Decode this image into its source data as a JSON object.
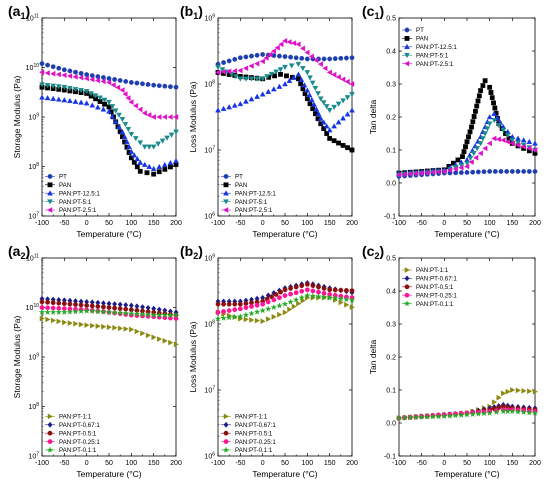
{
  "chart_data": [
    {
      "panel": "a1",
      "type": "scatter",
      "ylog": true,
      "xlim": [
        -100,
        200
      ],
      "ylim": [
        10000000,
        100000000000
      ],
      "xlabel": "Temperature (°C)",
      "ylabel": "Storage Modulus (Pa)",
      "legend_position": "bottom-left",
      "series": [
        {
          "name": "PT",
          "color": "#1f3fb0",
          "marker": "circle",
          "x": [
            -100,
            -50,
            0,
            50,
            100,
            150,
            200
          ],
          "y": [
            12000000000,
            9000000000,
            7200000000,
            6000000000,
            5000000000,
            4400000000,
            4000000000
          ]
        },
        {
          "name": "PAN",
          "color": "#000000",
          "marker": "square",
          "x": [
            -100,
            -50,
            0,
            50,
            80,
            100,
            120,
            150,
            200
          ],
          "y": [
            4000000000,
            3500000000,
            3000000000,
            1600000000,
            400000000,
            150000000,
            80000000,
            70000000,
            110000000
          ]
        },
        {
          "name": "PAN:PT-12.5:1",
          "color": "#1535e6",
          "marker": "triangle-up",
          "x": [
            -100,
            -50,
            0,
            50,
            80,
            100,
            120,
            150,
            200
          ],
          "y": [
            2500000000,
            2200000000,
            1900000000,
            1300000000,
            500000000,
            200000000,
            120000000,
            90000000,
            130000000
          ]
        },
        {
          "name": "PAN:PT-5:1",
          "color": "#1a8a8a",
          "marker": "triangle-down",
          "x": [
            -100,
            -50,
            0,
            50,
            80,
            100,
            130,
            150,
            200
          ],
          "y": [
            4500000000,
            4000000000,
            3300000000,
            2000000000,
            900000000,
            450000000,
            250000000,
            250000000,
            500000000
          ]
        },
        {
          "name": "PAN:PT-2.5:1",
          "color": "#e010c8",
          "marker": "triangle-left",
          "x": [
            -100,
            -50,
            0,
            50,
            80,
            100,
            130,
            150,
            200
          ],
          "y": [
            8000000000,
            7000000000,
            6000000000,
            5000000000,
            3500000000,
            2000000000,
            1200000000,
            1000000000,
            1000000000
          ]
        }
      ]
    },
    {
      "panel": "b1",
      "type": "scatter",
      "ylog": true,
      "xlim": [
        -100,
        200
      ],
      "ylim": [
        1000000,
        1000000000
      ],
      "xlabel": "Temperature (°C)",
      "ylabel": "Loss Modulus (Pa)",
      "legend_position": "bottom-left",
      "series": [
        {
          "name": "PT",
          "color": "#1f3fb0",
          "marker": "circle",
          "x": [
            -100,
            -50,
            0,
            50,
            100,
            150,
            200
          ],
          "y": [
            200000000,
            250000000,
            280000000,
            260000000,
            240000000,
            240000000,
            250000000
          ]
        },
        {
          "name": "PAN",
          "color": "#000000",
          "marker": "square",
          "x": [
            -100,
            -50,
            0,
            40,
            80,
            100,
            130,
            150,
            200
          ],
          "y": [
            150000000,
            130000000,
            120000000,
            140000000,
            120000000,
            60000000,
            25000000,
            15000000,
            10000000
          ]
        },
        {
          "name": "PAN:PT-12.5:1",
          "color": "#1535e6",
          "marker": "triangle-up",
          "x": [
            -100,
            -50,
            0,
            50,
            80,
            100,
            130,
            150,
            200
          ],
          "y": [
            40000000,
            50000000,
            70000000,
            100000000,
            140000000,
            80000000,
            30000000,
            20000000,
            40000000
          ]
        },
        {
          "name": "PAN:PT-5:1",
          "color": "#1a8a8a",
          "marker": "triangle-down",
          "x": [
            -100,
            -50,
            0,
            50,
            80,
            100,
            130,
            150,
            200
          ],
          "y": [
            180000000,
            120000000,
            120000000,
            180000000,
            200000000,
            150000000,
            60000000,
            40000000,
            70000000
          ]
        },
        {
          "name": "PAN:PT-2.5:1",
          "color": "#e010c8",
          "marker": "triangle-left",
          "x": [
            -100,
            -50,
            0,
            50,
            80,
            100,
            130,
            150,
            200
          ],
          "y": [
            150000000,
            160000000,
            220000000,
            450000000,
            400000000,
            300000000,
            200000000,
            150000000,
            100000000
          ]
        }
      ]
    },
    {
      "panel": "c1",
      "type": "scatter",
      "ylog": false,
      "xlim": [
        -100,
        200
      ],
      "ylim": [
        -0.1,
        0.5
      ],
      "xlabel": "Temperature (°C)",
      "ylabel": "Tan delta",
      "legend_position": "top-left",
      "series": [
        {
          "name": "PT",
          "color": "#1f3fb0",
          "marker": "circle",
          "x": [
            -100,
            -50,
            0,
            50,
            100,
            150,
            200
          ],
          "y": [
            0.02,
            0.025,
            0.03,
            0.032,
            0.035,
            0.035,
            0.035
          ]
        },
        {
          "name": "PAN",
          "color": "#000000",
          "marker": "square",
          "x": [
            -100,
            -50,
            0,
            40,
            60,
            80,
            90,
            100,
            120,
            150,
            200
          ],
          "y": [
            0.03,
            0.035,
            0.04,
            0.08,
            0.17,
            0.28,
            0.31,
            0.29,
            0.18,
            0.12,
            0.09
          ]
        },
        {
          "name": "PAN:PT-12.5:1",
          "color": "#1535e6",
          "marker": "triangle-up",
          "x": [
            -100,
            -50,
            0,
            50,
            80,
            100,
            110,
            130,
            150,
            200
          ],
          "y": [
            0.03,
            0.035,
            0.04,
            0.07,
            0.14,
            0.2,
            0.21,
            0.17,
            0.14,
            0.12
          ]
        },
        {
          "name": "PAN:PT-5:1",
          "color": "#1a8a8a",
          "marker": "triangle-down",
          "x": [
            -100,
            -50,
            0,
            50,
            80,
            100,
            110,
            130,
            150,
            200
          ],
          "y": [
            0.025,
            0.03,
            0.035,
            0.06,
            0.12,
            0.18,
            0.19,
            0.16,
            0.13,
            0.1
          ]
        },
        {
          "name": "PAN:PT-2.5:1",
          "color": "#e010c8",
          "marker": "triangle-left",
          "x": [
            -100,
            -50,
            0,
            50,
            80,
            100,
            110,
            130,
            150,
            200
          ],
          "y": [
            0.025,
            0.03,
            0.035,
            0.05,
            0.09,
            0.12,
            0.135,
            0.13,
            0.12,
            0.1
          ]
        }
      ]
    },
    {
      "panel": "a2",
      "type": "scatter",
      "ylog": true,
      "xlim": [
        -100,
        200
      ],
      "ylim": [
        10000000,
        100000000000
      ],
      "xlabel": "Temperature (°C)",
      "ylabel": "Storage Modulus (Pa)",
      "legend_position": "bottom-left",
      "series": [
        {
          "name": "PAN:PT-1:1",
          "color": "#8a8a10",
          "marker": "triangle-right",
          "x": [
            -100,
            -50,
            0,
            50,
            100,
            150,
            200
          ],
          "y": [
            6000000000,
            5000000000,
            4400000000,
            4000000000,
            3600000000,
            2500000000,
            1800000000
          ]
        },
        {
          "name": "PAN:PT-0.67:1",
          "color": "#1a1a8a",
          "marker": "diamond",
          "x": [
            -100,
            -50,
            0,
            50,
            100,
            150,
            200
          ],
          "y": [
            15000000000,
            14000000000,
            13000000000,
            12000000000,
            11000000000,
            9500000000,
            8000000000
          ]
        },
        {
          "name": "PAN:PT-0.5:1",
          "color": "#8a0f0f",
          "marker": "circle",
          "x": [
            -100,
            -50,
            0,
            50,
            100,
            150,
            200
          ],
          "y": [
            13000000000,
            12000000000,
            11000000000,
            10000000000,
            9000000000,
            8000000000,
            7000000000
          ]
        },
        {
          "name": "PAN:PT-0.25:1",
          "color": "#ff1493",
          "marker": "circle",
          "x": [
            -100,
            -50,
            0,
            50,
            100,
            150,
            200
          ],
          "y": [
            10000000000,
            9500000000,
            9000000000,
            8000000000,
            7000000000,
            6500000000,
            6000000000
          ]
        },
        {
          "name": "PAN:PT-0.1:1",
          "color": "#22aa22",
          "marker": "star",
          "x": [
            -100,
            -50,
            0,
            50,
            100,
            150,
            200
          ],
          "y": [
            8000000000,
            8000000000,
            8500000000,
            8000000000,
            7500000000,
            7000000000,
            7000000000
          ]
        }
      ]
    },
    {
      "panel": "b2",
      "type": "scatter",
      "ylog": true,
      "xlim": [
        -100,
        200
      ],
      "ylim": [
        1000000,
        1000000000
      ],
      "xlabel": "Temperature (°C)",
      "ylabel": "Loss Modulus (Pa)",
      "legend_position": "bottom-left",
      "series": [
        {
          "name": "PAN:PT-1:1",
          "color": "#8a8a10",
          "marker": "triangle-right",
          "x": [
            -100,
            -50,
            0,
            50,
            100,
            150,
            200
          ],
          "y": [
            150000000,
            120000000,
            110000000,
            150000000,
            250000000,
            250000000,
            180000000
          ]
        },
        {
          "name": "PAN:PT-0.67:1",
          "color": "#1a1a8a",
          "marker": "diamond",
          "x": [
            -100,
            -50,
            0,
            50,
            100,
            150,
            200
          ],
          "y": [
            220000000,
            220000000,
            250000000,
            350000000,
            420000000,
            350000000,
            300000000
          ]
        },
        {
          "name": "PAN:PT-0.5:1",
          "color": "#8a0f0f",
          "marker": "circle",
          "x": [
            -100,
            -50,
            0,
            50,
            100,
            150,
            200
          ],
          "y": [
            200000000,
            200000000,
            220000000,
            330000000,
            400000000,
            330000000,
            320000000
          ]
        },
        {
          "name": "PAN:PT-0.25:1",
          "color": "#ff1493",
          "marker": "circle",
          "x": [
            -100,
            -50,
            0,
            50,
            100,
            150,
            200
          ],
          "y": [
            150000000,
            170000000,
            200000000,
            270000000,
            330000000,
            280000000,
            250000000
          ]
        },
        {
          "name": "PAN:PT-0.1:1",
          "color": "#22aa22",
          "marker": "star",
          "x": [
            -100,
            -50,
            0,
            50,
            100,
            150,
            200
          ],
          "y": [
            120000000,
            130000000,
            160000000,
            200000000,
            270000000,
            250000000,
            230000000
          ]
        }
      ]
    },
    {
      "panel": "c2",
      "type": "scatter",
      "ylog": false,
      "xlim": [
        -100,
        200
      ],
      "ylim": [
        -0.1,
        0.5
      ],
      "xlabel": "Temperature (°C)",
      "ylabel": "Tan delta",
      "legend_position": "top-left",
      "series": [
        {
          "name": "PAN:PT-1:1",
          "color": "#8a8a10",
          "marker": "triangle-right",
          "x": [
            -100,
            -50,
            0,
            50,
            100,
            130,
            150,
            200
          ],
          "y": [
            0.015,
            0.02,
            0.025,
            0.03,
            0.05,
            0.09,
            0.1,
            0.095
          ]
        },
        {
          "name": "PAN:PT-0.67:1",
          "color": "#1a1a8a",
          "marker": "diamond",
          "x": [
            -100,
            -50,
            0,
            50,
            100,
            130,
            150,
            200
          ],
          "y": [
            0.015,
            0.02,
            0.025,
            0.03,
            0.045,
            0.055,
            0.05,
            0.045
          ]
        },
        {
          "name": "PAN:PT-0.5:1",
          "color": "#8a0f0f",
          "marker": "circle",
          "x": [
            -100,
            -50,
            0,
            50,
            100,
            130,
            150,
            200
          ],
          "y": [
            0.015,
            0.02,
            0.025,
            0.03,
            0.04,
            0.05,
            0.045,
            0.04
          ]
        },
        {
          "name": "PAN:PT-0.25:1",
          "color": "#ff1493",
          "marker": "circle",
          "x": [
            -100,
            -50,
            0,
            50,
            100,
            130,
            150,
            200
          ],
          "y": [
            0.015,
            0.02,
            0.025,
            0.03,
            0.035,
            0.04,
            0.04,
            0.035
          ]
        },
        {
          "name": "PAN:PT-0.1:1",
          "color": "#22aa22",
          "marker": "star",
          "x": [
            -100,
            -50,
            0,
            50,
            100,
            130,
            150,
            200
          ],
          "y": [
            0.015,
            0.018,
            0.02,
            0.025,
            0.03,
            0.035,
            0.035,
            0.03
          ]
        }
      ]
    }
  ],
  "panels": [
    {
      "label": "a",
      "sub": "1"
    },
    {
      "label": "b",
      "sub": "1"
    },
    {
      "label": "c",
      "sub": "1"
    },
    {
      "label": "a",
      "sub": "2"
    },
    {
      "label": "b",
      "sub": "2"
    },
    {
      "label": "c",
      "sub": "2"
    }
  ]
}
